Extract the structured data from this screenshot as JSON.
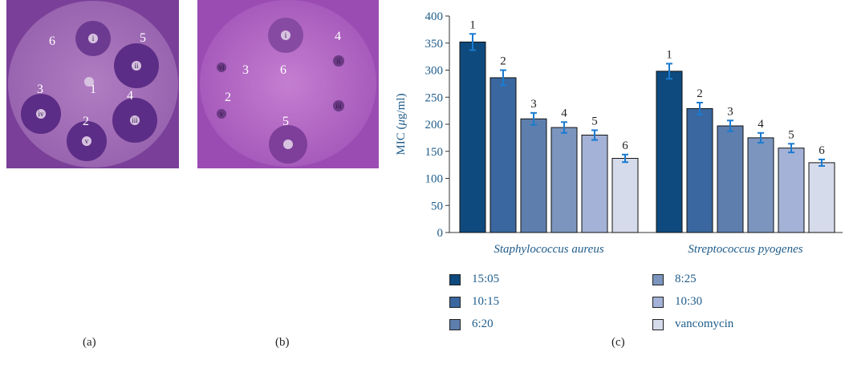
{
  "panels": {
    "a": {
      "label": "(a)",
      "zone_numbers": [
        "1",
        "2",
        "3",
        "4",
        "5",
        "6"
      ],
      "well_labels": [
        "i",
        "ii",
        "iii",
        "iv",
        "v",
        "vi"
      ]
    },
    "b": {
      "label": "(b)",
      "zone_numbers": [
        "1",
        "2",
        "3",
        "4",
        "5",
        "6"
      ],
      "well_labels": [
        "i",
        "ii",
        "iii",
        "iv",
        "v",
        "vi"
      ]
    },
    "c": {
      "label": "(c)"
    }
  },
  "chart_data": {
    "type": "bar",
    "ylabel_prefix": "MIC (",
    "ylabel_mu": "μ",
    "ylabel_suffix": "g/ml)",
    "ylim": [
      0,
      400
    ],
    "yticks": [
      "0",
      "50",
      "100",
      "150",
      "200",
      "250",
      "300",
      "350",
      "400"
    ],
    "categories": [
      "Staphylococcus aureus",
      "Streptococcus pyogenes"
    ],
    "series": [
      {
        "name": "15:05",
        "color": "#0e4a7e",
        "bar_label": "1",
        "values": [
          352,
          298
        ],
        "errors": [
          15,
          14
        ]
      },
      {
        "name": "10:15",
        "color": "#3a679f",
        "bar_label": "2",
        "values": [
          286,
          229
        ],
        "errors": [
          14,
          11
        ]
      },
      {
        "name": "6:20",
        "color": "#5e7fae",
        "bar_label": "3",
        "values": [
          210,
          197
        ],
        "errors": [
          11,
          10
        ]
      },
      {
        "name": "8:25",
        "color": "#7c95bf",
        "bar_label": "4",
        "values": [
          194,
          175
        ],
        "errors": [
          10,
          9
        ]
      },
      {
        "name": "10:30",
        "color": "#a3b2d6",
        "bar_label": "5",
        "values": [
          180,
          156
        ],
        "errors": [
          9,
          8
        ]
      },
      {
        "name": "vancomycin",
        "color": "#d6dbeb",
        "bar_label": "6",
        "values": [
          137,
          129
        ],
        "errors": [
          7,
          6
        ]
      }
    ],
    "error_color": "#1b7bd0",
    "legend_position": "bottom"
  }
}
